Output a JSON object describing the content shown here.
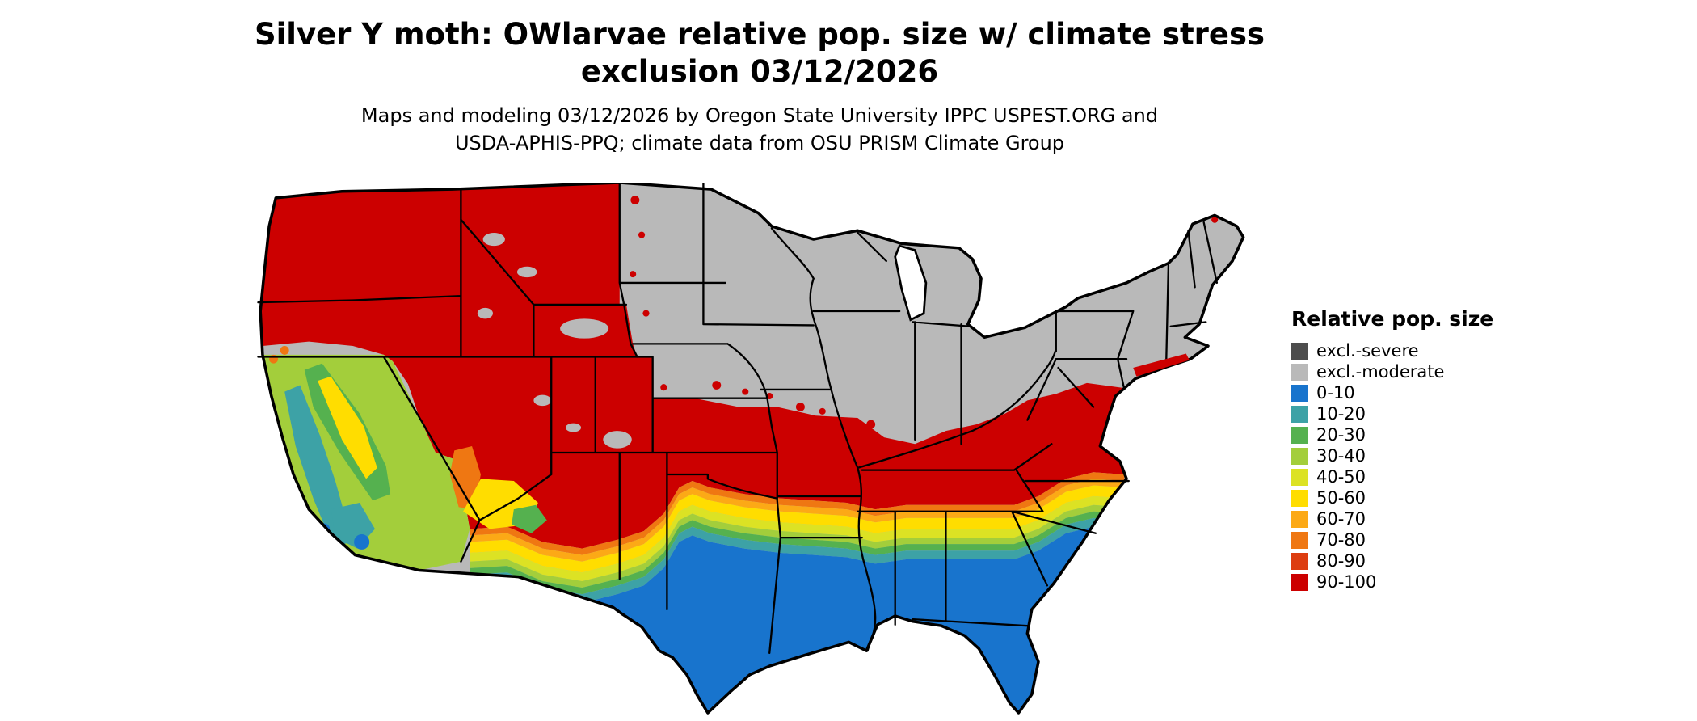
{
  "header": {
    "title_line1": "Silver Y moth: OWlarvae relative pop. size w/ climate stress",
    "title_line2": "exclusion 03/12/2026",
    "subtitle_line1": "Maps and modeling 03/12/2026 by Oregon State University IPPC USPEST.ORG and",
    "subtitle_line2": "USDA-APHIS-PPQ; climate data from OSU PRISM Climate Group"
  },
  "legend": {
    "title": "Relative pop. size",
    "items": [
      {
        "label": "excl.-severe",
        "color": "#4d4d4d"
      },
      {
        "label": "excl.-moderate",
        "color": "#b9b9b9"
      },
      {
        "label": "0-10",
        "color": "#1874CD"
      },
      {
        "label": "10-20",
        "color": "#3DA2A6"
      },
      {
        "label": "20-30",
        "color": "#55B14F"
      },
      {
        "label": "30-40",
        "color": "#A3CE3B"
      },
      {
        "label": "40-50",
        "color": "#DCE224"
      },
      {
        "label": "50-60",
        "color": "#FFDD00"
      },
      {
        "label": "60-70",
        "color": "#FCA916"
      },
      {
        "label": "70-80",
        "color": "#EF7712"
      },
      {
        "label": "80-90",
        "color": "#DD3D10"
      },
      {
        "label": "90-100",
        "color": "#CC0000"
      }
    ]
  }
}
